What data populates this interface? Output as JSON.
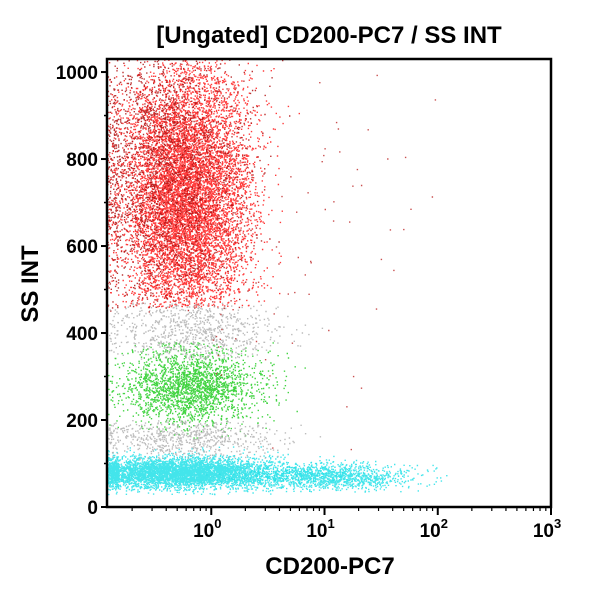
{
  "chart_data": {
    "type": "scatter",
    "title": "[Ungated] CD200-PC7 / SS INT",
    "xlabel": "CD200-PC7",
    "ylabel": "SS INT",
    "xscale": "log",
    "xlim": [
      0.12,
      1000
    ],
    "ylim": [
      0,
      1030
    ],
    "grid": false,
    "legend": "none",
    "x_ticks": [
      {
        "value": 1,
        "base": "10",
        "exp": "0"
      },
      {
        "value": 10,
        "base": "10",
        "exp": "1"
      },
      {
        "value": 100,
        "base": "10",
        "exp": "2"
      },
      {
        "value": 1000,
        "base": "10",
        "exp": "3"
      }
    ],
    "y_ticks": [
      {
        "value": 0,
        "label": "0"
      },
      {
        "value": 200,
        "label": "200"
      },
      {
        "value": 400,
        "label": "400"
      },
      {
        "value": 600,
        "label": "600"
      },
      {
        "value": 800,
        "label": "800"
      },
      {
        "value": 1000,
        "label": "1000"
      }
    ],
    "populations": [
      {
        "color": "#ff1a1a",
        "x_center": 0.6,
        "x_spread_decades": 0.28,
        "y_center": 720,
        "y_spread": 150,
        "count": 9000,
        "x_min": 0.12,
        "y_min": 460,
        "y_max": 1030
      },
      {
        "color": "#b01010",
        "x_center": 0.4,
        "x_spread_decades": 0.35,
        "y_center": 760,
        "y_spread": 160,
        "count": 2500,
        "x_min": 0.12,
        "y_min": 450,
        "y_max": 1030
      },
      {
        "color": "#22cc22",
        "x_center": 0.65,
        "x_spread_decades": 0.3,
        "y_center": 280,
        "y_spread": 45,
        "count": 2200,
        "x_min": 0.12,
        "y_min": 160,
        "y_max": 380
      },
      {
        "color": "#22e0e8",
        "x_center": 0.55,
        "x_spread_decades": 0.45,
        "y_center": 80,
        "y_spread": 18,
        "count": 5000,
        "x_min": 0.12,
        "y_min": 30,
        "y_max": 140
      },
      {
        "color": "#22e0e8",
        "x_center": 12,
        "x_spread_decades": 0.35,
        "y_center": 70,
        "y_spread": 15,
        "count": 1200,
        "x_min": 0.12,
        "y_min": 35,
        "y_max": 120
      },
      {
        "color": "#b0b0b0",
        "x_center": 0.7,
        "x_spread_decades": 0.4,
        "y_center": 410,
        "y_spread": 45,
        "count": 900,
        "x_min": 0.12,
        "y_min": 340,
        "y_max": 470
      },
      {
        "color": "#b0b0b0",
        "x_center": 0.6,
        "x_spread_decades": 0.4,
        "y_center": 160,
        "y_spread": 25,
        "count": 700,
        "x_min": 0.12,
        "y_min": 110,
        "y_max": 200
      },
      {
        "color": "#c03030",
        "x_center": 5,
        "x_spread_decades": 0.8,
        "y_center": 600,
        "y_spread": 250,
        "count": 80,
        "x_min": 1,
        "y_min": 100,
        "y_max": 1000
      }
    ]
  }
}
